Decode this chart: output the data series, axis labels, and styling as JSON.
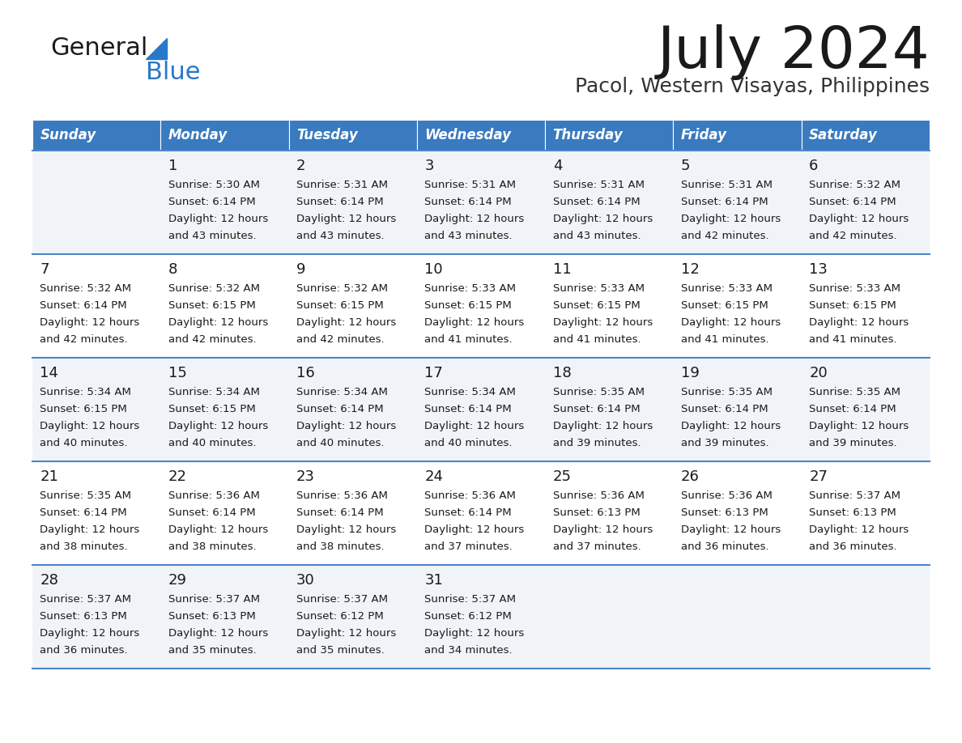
{
  "title": "July 2024",
  "subtitle": "Pacol, Western Visayas, Philippines",
  "days_of_week": [
    "Sunday",
    "Monday",
    "Tuesday",
    "Wednesday",
    "Thursday",
    "Friday",
    "Saturday"
  ],
  "header_bg": "#3a7abf",
  "header_text_color": "#ffffff",
  "row_bg_odd": "#f0f4f8",
  "row_bg_even": "#ffffff",
  "cell_border_color": "#4a86c8",
  "title_color": "#1a1a1a",
  "subtitle_color": "#333333",
  "text_color": "#1a1a1a",
  "logo_black": "#1a1a1a",
  "logo_blue": "#2878c8",
  "calendar": [
    [
      {
        "day": "",
        "sunrise": "",
        "sunset": "",
        "daylight": ""
      },
      {
        "day": "1",
        "sunrise": "5:30 AM",
        "sunset": "6:14 PM",
        "daylight": "12 hours and 43 minutes."
      },
      {
        "day": "2",
        "sunrise": "5:31 AM",
        "sunset": "6:14 PM",
        "daylight": "12 hours and 43 minutes."
      },
      {
        "day": "3",
        "sunrise": "5:31 AM",
        "sunset": "6:14 PM",
        "daylight": "12 hours and 43 minutes."
      },
      {
        "day": "4",
        "sunrise": "5:31 AM",
        "sunset": "6:14 PM",
        "daylight": "12 hours and 43 minutes."
      },
      {
        "day": "5",
        "sunrise": "5:31 AM",
        "sunset": "6:14 PM",
        "daylight": "12 hours and 42 minutes."
      },
      {
        "day": "6",
        "sunrise": "5:32 AM",
        "sunset": "6:14 PM",
        "daylight": "12 hours and 42 minutes."
      }
    ],
    [
      {
        "day": "7",
        "sunrise": "5:32 AM",
        "sunset": "6:14 PM",
        "daylight": "12 hours and 42 minutes."
      },
      {
        "day": "8",
        "sunrise": "5:32 AM",
        "sunset": "6:15 PM",
        "daylight": "12 hours and 42 minutes."
      },
      {
        "day": "9",
        "sunrise": "5:32 AM",
        "sunset": "6:15 PM",
        "daylight": "12 hours and 42 minutes."
      },
      {
        "day": "10",
        "sunrise": "5:33 AM",
        "sunset": "6:15 PM",
        "daylight": "12 hours and 41 minutes."
      },
      {
        "day": "11",
        "sunrise": "5:33 AM",
        "sunset": "6:15 PM",
        "daylight": "12 hours and 41 minutes."
      },
      {
        "day": "12",
        "sunrise": "5:33 AM",
        "sunset": "6:15 PM",
        "daylight": "12 hours and 41 minutes."
      },
      {
        "day": "13",
        "sunrise": "5:33 AM",
        "sunset": "6:15 PM",
        "daylight": "12 hours and 41 minutes."
      }
    ],
    [
      {
        "day": "14",
        "sunrise": "5:34 AM",
        "sunset": "6:15 PM",
        "daylight": "12 hours and 40 minutes."
      },
      {
        "day": "15",
        "sunrise": "5:34 AM",
        "sunset": "6:15 PM",
        "daylight": "12 hours and 40 minutes."
      },
      {
        "day": "16",
        "sunrise": "5:34 AM",
        "sunset": "6:14 PM",
        "daylight": "12 hours and 40 minutes."
      },
      {
        "day": "17",
        "sunrise": "5:34 AM",
        "sunset": "6:14 PM",
        "daylight": "12 hours and 40 minutes."
      },
      {
        "day": "18",
        "sunrise": "5:35 AM",
        "sunset": "6:14 PM",
        "daylight": "12 hours and 39 minutes."
      },
      {
        "day": "19",
        "sunrise": "5:35 AM",
        "sunset": "6:14 PM",
        "daylight": "12 hours and 39 minutes."
      },
      {
        "day": "20",
        "sunrise": "5:35 AM",
        "sunset": "6:14 PM",
        "daylight": "12 hours and 39 minutes."
      }
    ],
    [
      {
        "day": "21",
        "sunrise": "5:35 AM",
        "sunset": "6:14 PM",
        "daylight": "12 hours and 38 minutes."
      },
      {
        "day": "22",
        "sunrise": "5:36 AM",
        "sunset": "6:14 PM",
        "daylight": "12 hours and 38 minutes."
      },
      {
        "day": "23",
        "sunrise": "5:36 AM",
        "sunset": "6:14 PM",
        "daylight": "12 hours and 38 minutes."
      },
      {
        "day": "24",
        "sunrise": "5:36 AM",
        "sunset": "6:14 PM",
        "daylight": "12 hours and 37 minutes."
      },
      {
        "day": "25",
        "sunrise": "5:36 AM",
        "sunset": "6:13 PM",
        "daylight": "12 hours and 37 minutes."
      },
      {
        "day": "26",
        "sunrise": "5:36 AM",
        "sunset": "6:13 PM",
        "daylight": "12 hours and 36 minutes."
      },
      {
        "day": "27",
        "sunrise": "5:37 AM",
        "sunset": "6:13 PM",
        "daylight": "12 hours and 36 minutes."
      }
    ],
    [
      {
        "day": "28",
        "sunrise": "5:37 AM",
        "sunset": "6:13 PM",
        "daylight": "12 hours and 36 minutes."
      },
      {
        "day": "29",
        "sunrise": "5:37 AM",
        "sunset": "6:13 PM",
        "daylight": "12 hours and 35 minutes."
      },
      {
        "day": "30",
        "sunrise": "5:37 AM",
        "sunset": "6:12 PM",
        "daylight": "12 hours and 35 minutes."
      },
      {
        "day": "31",
        "sunrise": "5:37 AM",
        "sunset": "6:12 PM",
        "daylight": "12 hours and 34 minutes."
      },
      {
        "day": "",
        "sunrise": "",
        "sunset": "",
        "daylight": ""
      },
      {
        "day": "",
        "sunrise": "",
        "sunset": "",
        "daylight": ""
      },
      {
        "day": "",
        "sunrise": "",
        "sunset": "",
        "daylight": ""
      }
    ]
  ]
}
